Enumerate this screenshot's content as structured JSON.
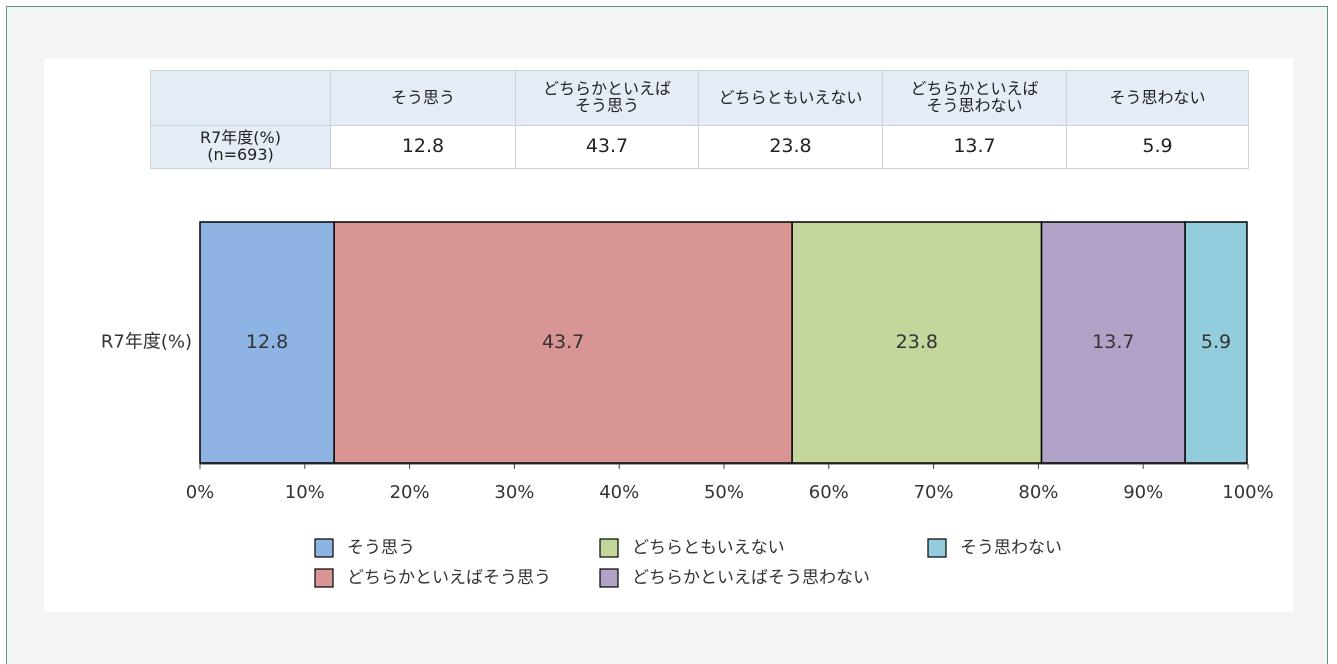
{
  "table": {
    "header": [
      "そう思う",
      "どちらかといえば\nそう思う",
      "どちらともいえない",
      "どちらかといえば\nそう思わない",
      "そう思わない"
    ],
    "rows": [
      [
        "R7年度(%)\n(n=693)",
        12.8,
        43.7,
        23.8,
        13.7,
        5.9
      ]
    ]
  },
  "chart_data": {
    "type": "bar",
    "orientation": "horizontal",
    "stacked": true,
    "categories": [
      "R7年度(%)"
    ],
    "series": [
      {
        "name": "そう思う",
        "color": "#8eb4e3",
        "values": [
          12.8
        ]
      },
      {
        "name": "どちらかといえばそう思う",
        "color": "#d99594",
        "values": [
          43.7
        ]
      },
      {
        "name": "どちらともいえない",
        "color": "#c3d69b",
        "values": [
          23.8
        ]
      },
      {
        "name": "どちらかといえばそう思わない",
        "color": "#b2a2c7",
        "values": [
          13.7
        ]
      },
      {
        "name": "そう思わない",
        "color": "#93cddd",
        "values": [
          5.9
        ]
      }
    ],
    "xlim": [
      0,
      100
    ],
    "xticks": [
      {
        "value": 0,
        "label": "0%"
      },
      {
        "value": 10,
        "label": "10%"
      },
      {
        "value": 20,
        "label": "20%"
      },
      {
        "value": 30,
        "label": "30%"
      },
      {
        "value": 40,
        "label": "40%"
      },
      {
        "value": 50,
        "label": "50%"
      },
      {
        "value": 60,
        "label": "60%"
      },
      {
        "value": 70,
        "label": "70%"
      },
      {
        "value": 80,
        "label": "80%"
      },
      {
        "value": 90,
        "label": "90%"
      },
      {
        "value": 100,
        "label": "100%"
      }
    ],
    "legend": "bottom"
  }
}
